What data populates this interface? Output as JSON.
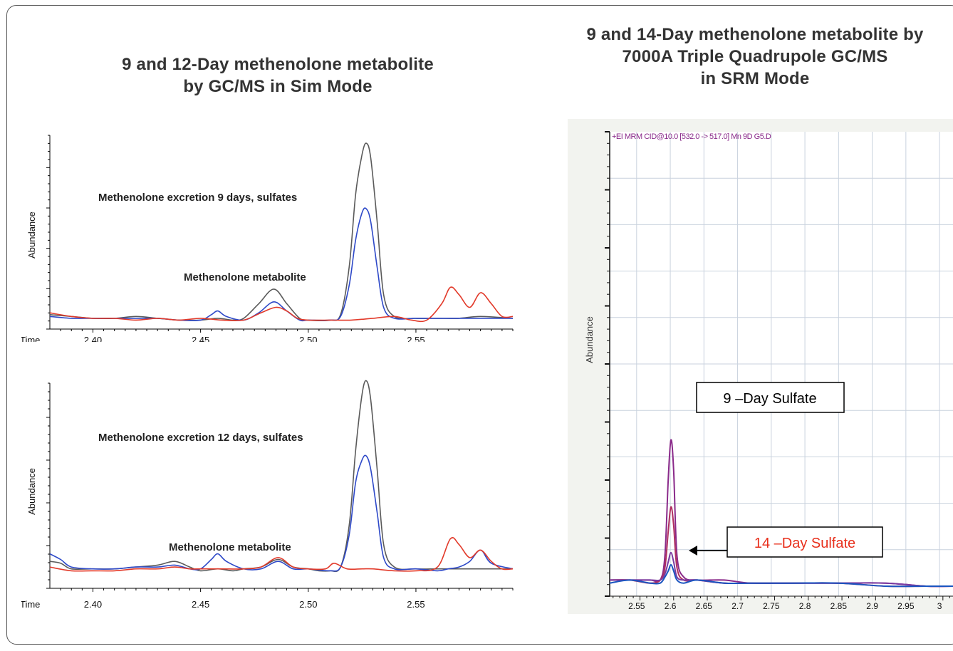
{
  "left_title": {
    "line1": "9 and 12-Day methenolone metabolite",
    "line2": "by GC/MS in Sim Mode"
  },
  "right_title": {
    "line1": "9 and 14-Day methenolone metabolite by",
    "line2": "7000A Triple Quadrupole GC/MS",
    "line3": "in SRM Mode"
  },
  "chart_data": [
    {
      "type": "line",
      "xlabel": "Time",
      "ylabel": "Abundance",
      "xlim": [
        2.38,
        2.595
      ],
      "ylim": [
        0,
        100
      ],
      "x_ticks": [
        "2.40",
        "2.45",
        "2.50",
        "2.55"
      ],
      "tick_values": [
        2.4,
        2.45,
        2.5,
        2.55
      ],
      "annotations": [
        {
          "text": "Methenolone excretion 9 days, sulfates",
          "x": 2.41,
          "y": 68
        },
        {
          "text": "Methenolone metabolite",
          "x": 2.46,
          "y": 24
        }
      ],
      "series": [
        {
          "color": "#5a5a5a",
          "x": [
            2.38,
            2.39,
            2.4,
            2.41,
            2.42,
            2.43,
            2.44,
            2.45,
            2.458,
            2.465,
            2.47,
            2.477,
            2.484,
            2.49,
            2.496,
            2.5,
            2.51,
            2.515,
            2.519,
            2.522,
            2.525,
            2.527,
            2.529,
            2.532,
            2.535,
            2.54,
            2.55,
            2.56,
            2.57,
            2.58,
            2.595
          ],
          "y": [
            4,
            3,
            2,
            2,
            3,
            2,
            1,
            1,
            2,
            1,
            2,
            10,
            18,
            10,
            2,
            1,
            1,
            4,
            30,
            70,
            92,
            98,
            90,
            55,
            15,
            3,
            2,
            2,
            2,
            3,
            2
          ]
        },
        {
          "color": "#2e49c8",
          "x": [
            2.38,
            2.39,
            2.4,
            2.41,
            2.42,
            2.43,
            2.44,
            2.45,
            2.455,
            2.458,
            2.462,
            2.47,
            2.477,
            2.484,
            2.49,
            2.496,
            2.5,
            2.51,
            2.515,
            2.519,
            2.522,
            2.525,
            2.527,
            2.529,
            2.532,
            2.535,
            2.54,
            2.55,
            2.56,
            2.57,
            2.58,
            2.595
          ],
          "y": [
            3,
            2,
            2,
            2,
            2,
            2,
            1,
            1,
            4,
            6,
            3,
            1,
            5,
            11,
            6,
            1,
            1,
            1,
            3,
            20,
            45,
            60,
            62,
            55,
            30,
            8,
            2,
            2,
            2,
            2,
            2,
            2
          ]
        },
        {
          "color": "#e23a2a",
          "x": [
            2.38,
            2.39,
            2.4,
            2.41,
            2.42,
            2.43,
            2.44,
            2.45,
            2.46,
            2.47,
            2.478,
            2.485,
            2.49,
            2.495,
            2.5,
            2.51,
            2.52,
            2.53,
            2.54,
            2.548,
            2.555,
            2.562,
            2.566,
            2.57,
            2.575,
            2.58,
            2.585,
            2.59,
            2.595
          ],
          "y": [
            5,
            3,
            2,
            2,
            1,
            2,
            1,
            2,
            1,
            1,
            5,
            8,
            6,
            2,
            1,
            1,
            1,
            2,
            3,
            1,
            1,
            10,
            19,
            15,
            8,
            16,
            10,
            3,
            3
          ]
        }
      ]
    },
    {
      "type": "line",
      "xlabel": "Time",
      "ylabel": "Abundance",
      "xlim": [
        2.38,
        2.595
      ],
      "ylim": [
        0,
        100
      ],
      "x_ticks": [
        "2.40",
        "2.45",
        "2.50",
        "2.55"
      ],
      "tick_values": [
        2.4,
        2.45,
        2.5,
        2.55
      ],
      "annotations": [
        {
          "text": "Methenolone excretion 12 days, sulfates",
          "x": 2.41,
          "y": 68
        },
        {
          "text": "Methenolone metabolite",
          "x": 2.435,
          "y": 24
        }
      ],
      "series": [
        {
          "color": "#5a5a5a",
          "x": [
            2.38,
            2.385,
            2.39,
            2.4,
            2.41,
            2.42,
            2.43,
            2.438,
            2.445,
            2.45,
            2.458,
            2.465,
            2.47,
            2.478,
            2.486,
            2.493,
            2.5,
            2.505,
            2.51,
            2.515,
            2.519,
            2.522,
            2.525,
            2.527,
            2.529,
            2.532,
            2.535,
            2.54,
            2.55,
            2.56,
            2.57,
            2.58,
            2.595
          ],
          "y": [
            6,
            5,
            2,
            2,
            2,
            3,
            4,
            6,
            3,
            1,
            2,
            1,
            2,
            3,
            7,
            3,
            2,
            1,
            1,
            3,
            25,
            65,
            95,
            102,
            92,
            55,
            15,
            3,
            2,
            2,
            2,
            2,
            2
          ]
        },
        {
          "color": "#2e49c8",
          "x": [
            2.38,
            2.385,
            2.39,
            2.4,
            2.41,
            2.42,
            2.43,
            2.438,
            2.445,
            2.45,
            2.455,
            2.458,
            2.462,
            2.47,
            2.478,
            2.486,
            2.493,
            2.5,
            2.51,
            2.515,
            2.519,
            2.522,
            2.525,
            2.527,
            2.529,
            2.532,
            2.535,
            2.54,
            2.55,
            2.56,
            2.565,
            2.57,
            2.575,
            2.58,
            2.585,
            2.595
          ],
          "y": [
            10,
            7,
            3,
            2,
            2,
            3,
            3,
            4,
            2,
            2,
            7,
            10,
            6,
            2,
            2,
            6,
            2,
            2,
            1,
            3,
            20,
            48,
            60,
            62,
            55,
            32,
            8,
            2,
            2,
            1,
            2,
            3,
            6,
            12,
            5,
            2
          ]
        },
        {
          "color": "#e23a2a",
          "x": [
            2.38,
            2.39,
            2.4,
            2.41,
            2.42,
            2.43,
            2.438,
            2.445,
            2.45,
            2.46,
            2.47,
            2.478,
            2.486,
            2.493,
            2.5,
            2.508,
            2.512,
            2.518,
            2.525,
            2.53,
            2.54,
            2.55,
            2.56,
            2.566,
            2.57,
            2.575,
            2.58,
            2.585,
            2.59,
            2.595
          ],
          "y": [
            3,
            1,
            1,
            1,
            2,
            2,
            3,
            2,
            2,
            2,
            2,
            3,
            8,
            3,
            2,
            2,
            5,
            2,
            2,
            2,
            1,
            1,
            3,
            18,
            15,
            8,
            12,
            6,
            2,
            2
          ]
        }
      ]
    },
    {
      "type": "line",
      "title": "+EI MRM CID@10.0 [532.0 -> 517.0] Mn 9D G5.D",
      "ylabel": "Abundance",
      "xlim": [
        2.51,
        3.02
      ],
      "ylim": [
        0,
        100
      ],
      "x_ticks": [
        "2.55",
        "2.6",
        "2.65",
        "2.7",
        "2.75",
        "2.8",
        "2.85",
        "2.9",
        "2.95",
        "3"
      ],
      "tick_values": [
        2.55,
        2.6,
        2.65,
        2.7,
        2.75,
        2.8,
        2.85,
        2.9,
        2.95,
        3.0
      ],
      "grid": true,
      "annotations": [
        {
          "text": "9 –Day Sulfate",
          "color": "#000000"
        },
        {
          "text": "14 –Day Sulfate",
          "color": "#e8301c"
        }
      ],
      "series": [
        {
          "color": "#8a2a8a",
          "x": [
            2.51,
            2.54,
            2.57,
            2.585,
            2.592,
            2.597,
            2.601,
            2.605,
            2.61,
            2.62,
            2.64,
            2.68,
            2.72,
            2.78,
            2.85,
            2.92,
            2.98,
            3.02
          ],
          "y": [
            2,
            2,
            2,
            2,
            10,
            35,
            48,
            38,
            10,
            3,
            2,
            2,
            1,
            1,
            1,
            1,
            0,
            0
          ]
        },
        {
          "color": "#b03060",
          "x": [
            2.51,
            2.54,
            2.57,
            2.585,
            2.592,
            2.597,
            2.601,
            2.605,
            2.61,
            2.62,
            2.64,
            2.68,
            2.72,
            2.78,
            2.85,
            2.92,
            2.98,
            3.02
          ],
          "y": [
            2,
            2,
            1,
            2,
            6,
            18,
            26,
            20,
            6,
            2,
            2,
            1,
            1,
            1,
            1,
            0,
            0,
            0
          ]
        },
        {
          "color": "#7a3aa0",
          "x": [
            2.51,
            2.54,
            2.57,
            2.585,
            2.592,
            2.597,
            2.601,
            2.605,
            2.61,
            2.62,
            2.64,
            2.68,
            2.72,
            2.78,
            2.85,
            2.92,
            2.98,
            3.02
          ],
          "y": [
            2,
            2,
            2,
            2,
            4,
            8,
            11,
            8,
            3,
            2,
            2,
            1,
            1,
            1,
            1,
            1,
            0,
            0
          ]
        },
        {
          "color": "#1a55c0",
          "x": [
            2.51,
            2.54,
            2.57,
            2.585,
            2.592,
            2.597,
            2.601,
            2.605,
            2.61,
            2.62,
            2.64,
            2.68,
            2.72,
            2.78,
            2.85,
            2.92,
            2.98,
            3.02
          ],
          "y": [
            1,
            2,
            1,
            1,
            3,
            5,
            7,
            5,
            2,
            1,
            2,
            1,
            1,
            1,
            1,
            0,
            0,
            0
          ]
        }
      ]
    }
  ]
}
